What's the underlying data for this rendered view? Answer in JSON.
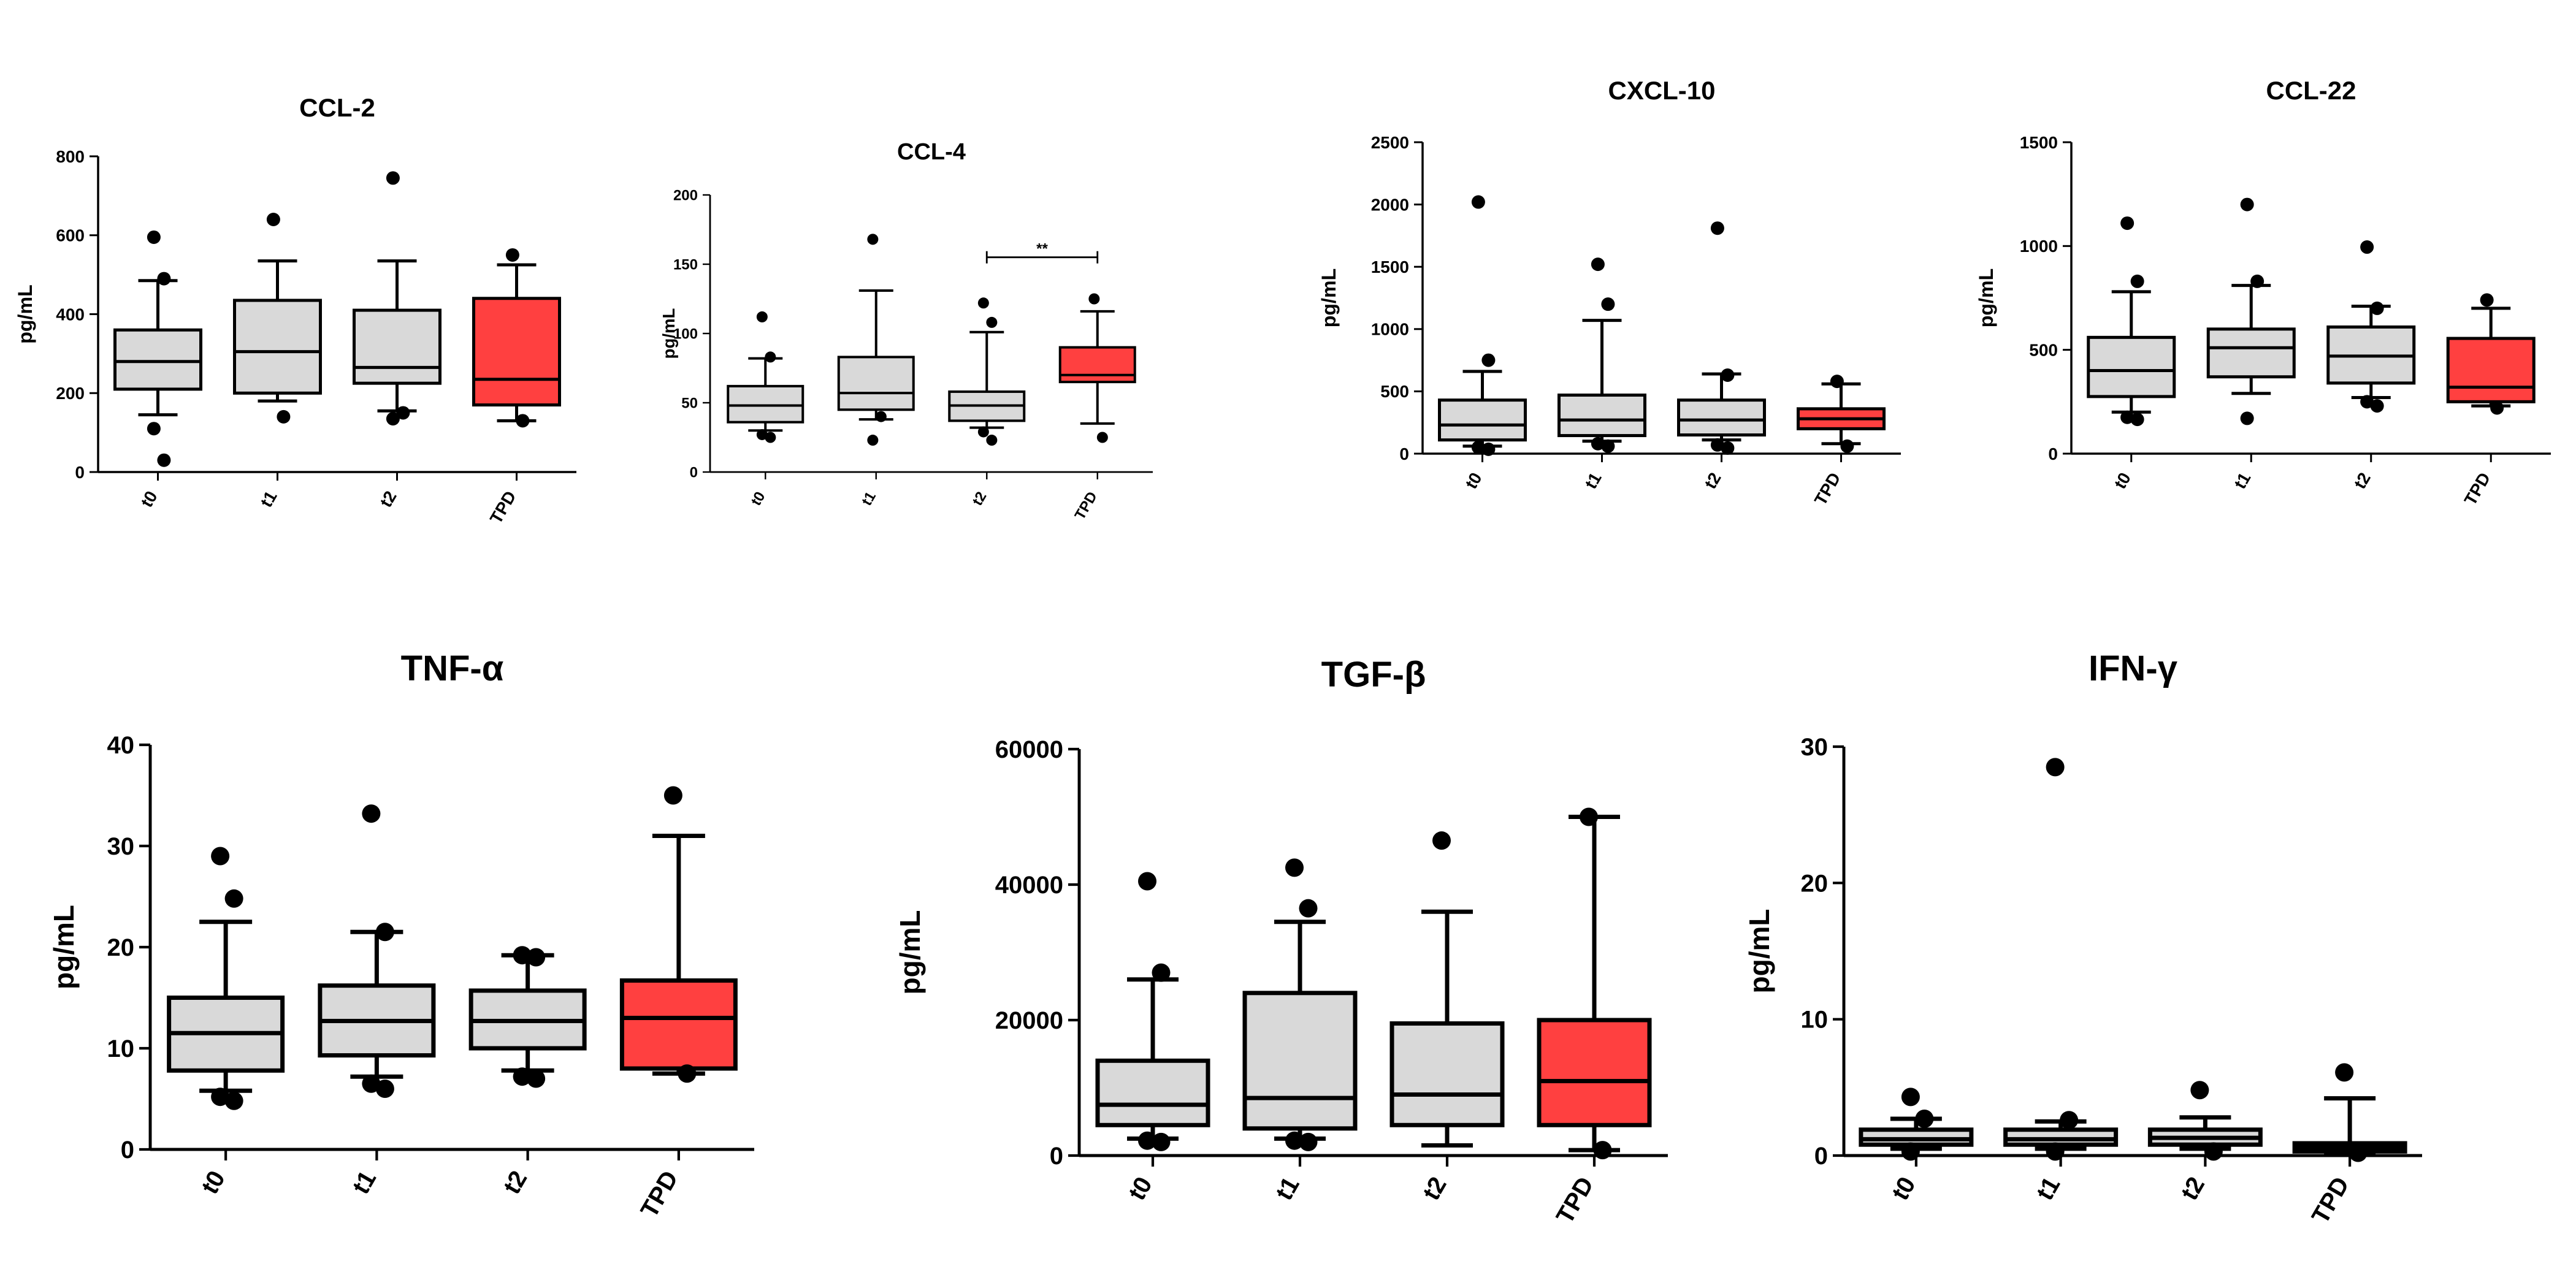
{
  "colors": {
    "box_gray": "#d9d9d9",
    "box_red": "#ff4040",
    "stroke": "#000000"
  },
  "chart_data": [
    {
      "type": "box",
      "title": "CCL-2",
      "ylabel": "pg/mL",
      "categories": [
        "t0",
        "t1",
        "t2",
        "TPD"
      ],
      "ylim": [
        0,
        800
      ],
      "yticks": [
        0,
        200,
        400,
        600,
        800
      ],
      "fills": [
        "gray",
        "gray",
        "gray",
        "red"
      ],
      "boxes": [
        {
          "whisker_low": 145,
          "q1": 210,
          "median": 280,
          "q3": 360,
          "whisker_high": 485,
          "outliers": [
            595,
            490,
            110,
            30
          ]
        },
        {
          "whisker_low": 180,
          "q1": 200,
          "median": 305,
          "q3": 435,
          "whisker_high": 535,
          "outliers": [
            640,
            140
          ]
        },
        {
          "whisker_low": 155,
          "q1": 225,
          "median": 265,
          "q3": 410,
          "whisker_high": 535,
          "outliers": [
            745,
            150,
            135
          ]
        },
        {
          "whisker_low": 130,
          "q1": 170,
          "median": 235,
          "q3": 440,
          "whisker_high": 525,
          "outliers": [
            550,
            130
          ]
        }
      ]
    },
    {
      "type": "box",
      "title": "CCL-4",
      "ylabel": "pg/mL",
      "categories": [
        "t0",
        "t1",
        "t2",
        "TPD"
      ],
      "ylim": [
        0,
        200
      ],
      "yticks": [
        0,
        50,
        100,
        150,
        200
      ],
      "fills": [
        "gray",
        "gray",
        "gray",
        "red"
      ],
      "annotation": {
        "text": "**",
        "from": 2,
        "to": 3,
        "y": 155
      },
      "boxes": [
        {
          "whisker_low": 30,
          "q1": 36,
          "median": 48,
          "q3": 62,
          "whisker_high": 82,
          "outliers": [
            112,
            83,
            27,
            25
          ]
        },
        {
          "whisker_low": 38,
          "q1": 45,
          "median": 57,
          "q3": 83,
          "whisker_high": 131,
          "outliers": [
            168,
            40,
            23
          ]
        },
        {
          "whisker_low": 32,
          "q1": 37,
          "median": 48,
          "q3": 58,
          "whisker_high": 101,
          "outliers": [
            122,
            108,
            29,
            23
          ]
        },
        {
          "whisker_low": 35,
          "q1": 65,
          "median": 70,
          "q3": 90,
          "whisker_high": 116,
          "outliers": [
            125,
            25
          ]
        }
      ]
    },
    {
      "type": "box",
      "title": "CXCL-10",
      "ylabel": "pg/mL",
      "categories": [
        "t0",
        "t1",
        "t2",
        "TPD"
      ],
      "ylim": [
        0,
        2500
      ],
      "yticks": [
        0,
        500,
        1000,
        1500,
        2000,
        2500
      ],
      "fills": [
        "gray",
        "gray",
        "gray",
        "red"
      ],
      "boxes": [
        {
          "whisker_low": 60,
          "q1": 110,
          "median": 230,
          "q3": 430,
          "whisker_high": 660,
          "outliers": [
            2020,
            750,
            50,
            35
          ]
        },
        {
          "whisker_low": 100,
          "q1": 145,
          "median": 270,
          "q3": 470,
          "whisker_high": 1070,
          "outliers": [
            1520,
            1200,
            80,
            60
          ]
        },
        {
          "whisker_low": 110,
          "q1": 150,
          "median": 270,
          "q3": 430,
          "whisker_high": 640,
          "outliers": [
            1810,
            630,
            70,
            45
          ]
        },
        {
          "whisker_low": 80,
          "q1": 200,
          "median": 280,
          "q3": 360,
          "whisker_high": 560,
          "outliers": [
            580,
            60
          ]
        }
      ]
    },
    {
      "type": "box",
      "title": "CCL-22",
      "ylabel": "pg/mL",
      "categories": [
        "t0",
        "t1",
        "t2",
        "TPD"
      ],
      "ylim": [
        0,
        1500
      ],
      "yticks": [
        0,
        500,
        1000,
        1500
      ],
      "fills": [
        "gray",
        "gray",
        "gray",
        "red"
      ],
      "boxes": [
        {
          "whisker_low": 200,
          "q1": 275,
          "median": 400,
          "q3": 560,
          "whisker_high": 780,
          "outliers": [
            1110,
            830,
            175,
            165
          ]
        },
        {
          "whisker_low": 290,
          "q1": 370,
          "median": 510,
          "q3": 600,
          "whisker_high": 810,
          "outliers": [
            1200,
            830,
            170
          ]
        },
        {
          "whisker_low": 270,
          "q1": 340,
          "median": 470,
          "q3": 610,
          "whisker_high": 710,
          "outliers": [
            995,
            700,
            250,
            230
          ]
        },
        {
          "whisker_low": 230,
          "q1": 250,
          "median": 320,
          "q3": 555,
          "whisker_high": 700,
          "outliers": [
            740,
            220
          ]
        }
      ]
    },
    {
      "type": "box",
      "title": "TNF-α",
      "ylabel": "pg/mL",
      "categories": [
        "t0",
        "t1",
        "t2",
        "TPD"
      ],
      "ylim": [
        0,
        40
      ],
      "yticks": [
        0,
        10,
        20,
        30,
        40
      ],
      "fills": [
        "gray",
        "gray",
        "gray",
        "red"
      ],
      "boxes": [
        {
          "whisker_low": 5.8,
          "q1": 7.8,
          "median": 11.5,
          "q3": 15,
          "whisker_high": 22.5,
          "outliers": [
            29,
            24.8,
            5.2,
            4.8
          ]
        },
        {
          "whisker_low": 7.2,
          "q1": 9.3,
          "median": 12.7,
          "q3": 16.2,
          "whisker_high": 21.5,
          "outliers": [
            33.2,
            21.5,
            6.5,
            6
          ]
        },
        {
          "whisker_low": 7.8,
          "q1": 10,
          "median": 12.7,
          "q3": 15.7,
          "whisker_high": 19.2,
          "outliers": [
            19.2,
            19,
            7.2,
            7
          ]
        },
        {
          "whisker_low": 7.5,
          "q1": 8,
          "median": 13,
          "q3": 16.7,
          "whisker_high": 31,
          "outliers": [
            35,
            7.5
          ]
        }
      ]
    },
    {
      "type": "box",
      "title": "TGF-β",
      "ylabel": "pg/mL",
      "categories": [
        "t0",
        "t1",
        "t2",
        "TPD"
      ],
      "ylim": [
        0,
        60000
      ],
      "yticks": [
        0,
        20000,
        40000,
        60000
      ],
      "fills": [
        "gray",
        "gray",
        "gray",
        "red"
      ],
      "boxes": [
        {
          "whisker_low": 2500,
          "q1": 4500,
          "median": 7500,
          "q3": 14000,
          "whisker_high": 26000,
          "outliers": [
            40500,
            27000,
            2200,
            2000
          ]
        },
        {
          "whisker_low": 2500,
          "q1": 4000,
          "median": 8500,
          "q3": 24000,
          "whisker_high": 34500,
          "outliers": [
            42500,
            36500,
            2200,
            2000
          ]
        },
        {
          "whisker_low": 1500,
          "q1": 4500,
          "median": 9000,
          "q3": 19500,
          "whisker_high": 36000,
          "outliers": [
            46500
          ]
        },
        {
          "whisker_low": 800,
          "q1": 4500,
          "median": 11000,
          "q3": 20000,
          "whisker_high": 50000,
          "outliers": [
            50000,
            800
          ]
        }
      ]
    },
    {
      "type": "box",
      "title": "IFN-γ",
      "ylabel": "pg/mL",
      "categories": [
        "t0",
        "t1",
        "t2",
        "TPD"
      ],
      "ylim": [
        0,
        30
      ],
      "yticks": [
        0,
        10,
        20,
        30
      ],
      "fills": [
        "gray",
        "gray",
        "gray",
        "red"
      ],
      "boxes": [
        {
          "whisker_low": 0.5,
          "q1": 0.8,
          "median": 1.2,
          "q3": 1.9,
          "whisker_high": 2.7,
          "outliers": [
            4.3,
            2.7,
            0.3
          ]
        },
        {
          "whisker_low": 0.5,
          "q1": 0.8,
          "median": 1.2,
          "q3": 1.9,
          "whisker_high": 2.5,
          "outliers": [
            28.5,
            2.6,
            0.3
          ]
        },
        {
          "whisker_low": 0.5,
          "q1": 0.8,
          "median": 1.3,
          "q3": 1.9,
          "whisker_high": 2.8,
          "outliers": [
            4.8,
            0.3
          ]
        },
        {
          "whisker_low": 0.2,
          "q1": 0.3,
          "median": 0.6,
          "q3": 0.9,
          "whisker_high": 4.2,
          "outliers": [
            6.1,
            0.2
          ]
        }
      ]
    }
  ]
}
